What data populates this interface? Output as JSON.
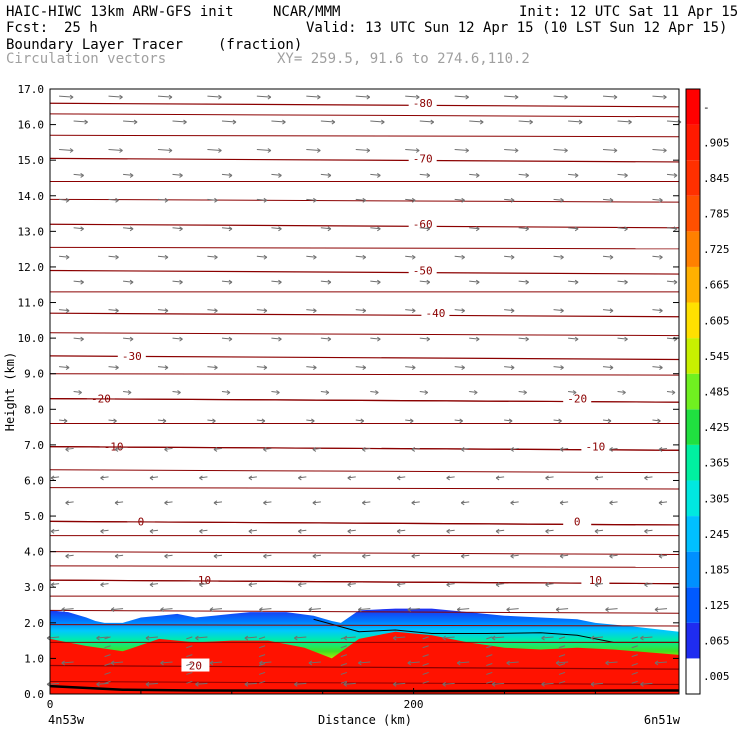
{
  "header": {
    "model": "HAIC-HIWC 13km ARW-GFS init",
    "org": "NCAR/MMM",
    "init": "Init: 12 UTC Sat 11 Apr 15",
    "fcst_label": "Fcst:",
    "fcst_value": "25 h",
    "valid": "Valid: 13 UTC Sun 12 Apr 15 (10 LST Sun 12 Apr 15)",
    "field": "Boundary Layer Tracer",
    "units": "(fraction)",
    "vectors": "Circulation vectors",
    "xy": "XY= 259.5, 91.6 to 274.6,110.2"
  },
  "colors": {
    "contour": "#8b0000",
    "vector": "#707070",
    "tracer": [
      "#ffffff",
      "#2a2af0",
      "#0090ff",
      "#00d0ff",
      "#00f0b0",
      "#20e020",
      "#80f020",
      "#e0f000",
      "#ffd000",
      "#ff9000",
      "#ff5a00",
      "#ff2000",
      "#ff0000"
    ]
  },
  "chart_data": {
    "type": "cross-section",
    "title": "Boundary Layer Tracer",
    "xlabel": "Distance (km)",
    "ylabel": "Height (km)",
    "xlim": [
      0,
      346
    ],
    "ylim": [
      0,
      17
    ],
    "x_ticks": [
      0,
      200
    ],
    "y_ticks": [
      "0.0",
      "1.0",
      "2.0",
      "3.0",
      "4.0",
      "5.0",
      "6.0",
      "7.0",
      "8.0",
      "9.0",
      "10.0",
      "11.0",
      "12.0",
      "13.0",
      "14.0",
      "15.0",
      "16.0",
      "17.0"
    ],
    "x_endpoints": [
      "4n53w",
      "6n51w"
    ],
    "colorbar_ticks": [
      ".005",
      ".065",
      ".125",
      ".185",
      ".245",
      ".305",
      ".365",
      ".425",
      ".485",
      ".545",
      ".605",
      ".665",
      ".725",
      ".785",
      ".845",
      ".905",
      "-"
    ],
    "tracer_top_km": [
      [
        0,
        2.35
      ],
      [
        10,
        2.3
      ],
      [
        20,
        2.15
      ],
      [
        25,
        2.05
      ],
      [
        30,
        2.0
      ],
      [
        40,
        2.0
      ],
      [
        50,
        2.15
      ],
      [
        60,
        2.2
      ],
      [
        70,
        2.25
      ],
      [
        80,
        2.15
      ],
      [
        90,
        2.2
      ],
      [
        100,
        2.25
      ],
      [
        110,
        2.3
      ],
      [
        130,
        2.3
      ],
      [
        145,
        2.2
      ],
      [
        155,
        2.05
      ],
      [
        160,
        2.0
      ],
      [
        170,
        2.35
      ],
      [
        190,
        2.4
      ],
      [
        210,
        2.4
      ],
      [
        230,
        2.3
      ],
      [
        250,
        2.2
      ],
      [
        270,
        2.15
      ],
      [
        290,
        2.1
      ],
      [
        300,
        2.0
      ],
      [
        320,
        1.9
      ],
      [
        346,
        1.75
      ]
    ],
    "red_top_km": [
      [
        0,
        1.55
      ],
      [
        20,
        1.35
      ],
      [
        40,
        1.2
      ],
      [
        60,
        1.55
      ],
      [
        80,
        1.45
      ],
      [
        100,
        1.5
      ],
      [
        120,
        1.5
      ],
      [
        140,
        1.3
      ],
      [
        155,
        1.0
      ],
      [
        170,
        1.55
      ],
      [
        190,
        1.75
      ],
      [
        210,
        1.65
      ],
      [
        230,
        1.45
      ],
      [
        250,
        1.3
      ],
      [
        270,
        1.25
      ],
      [
        290,
        1.3
      ],
      [
        310,
        1.25
      ],
      [
        346,
        1.1
      ]
    ],
    "temperature_contours": [
      {
        "label": "-80",
        "y": 16.6,
        "label_x": 205
      },
      {
        "label": "-70",
        "y": 15.05,
        "label_x": 205
      },
      {
        "label": "-60",
        "y": 13.2,
        "label_x": 205
      },
      {
        "label": "-50",
        "y": 11.9,
        "label_x": 205
      },
      {
        "label": "-40",
        "y": 10.7,
        "label_x": 212
      },
      {
        "label": "-30",
        "y": 9.5,
        "label_x": 45
      },
      {
        "label": "-20",
        "y": 8.3,
        "label_x": 28
      },
      {
        "label": "-20",
        "y": 8.3,
        "label_x": 290
      },
      {
        "label": "-10",
        "y": 6.95,
        "label_x": 35
      },
      {
        "label": "-10",
        "y": 6.95,
        "label_x": 300
      },
      {
        "label": "0",
        "y": 4.85,
        "label_x": 50
      },
      {
        "label": "0",
        "y": 4.85,
        "label_x": 290
      },
      {
        "label": "10",
        "y": 3.2,
        "label_x": 85
      },
      {
        "label": "10",
        "y": 3.2,
        "label_x": 300
      },
      {
        "label": "20",
        "y": 0.8,
        "label_x": 80
      }
    ],
    "extra_contour_levels_km": [
      16.3,
      15.7,
      14.4,
      13.9,
      12.55,
      11.3,
      10.15,
      9.0,
      7.6,
      6.3,
      5.8,
      4.45,
      4.0,
      3.6,
      2.75,
      2.35,
      1.95,
      1.45,
      0.35
    ],
    "vector_rows_km": [
      16.8,
      16.1,
      15.3,
      14.6,
      13.9,
      13.1,
      12.3,
      11.6,
      10.8,
      10.0,
      9.2,
      8.5,
      7.7,
      6.9,
      6.1,
      5.4,
      4.6,
      3.9,
      3.1,
      2.4,
      1.6,
      0.9,
      0.3
    ]
  }
}
